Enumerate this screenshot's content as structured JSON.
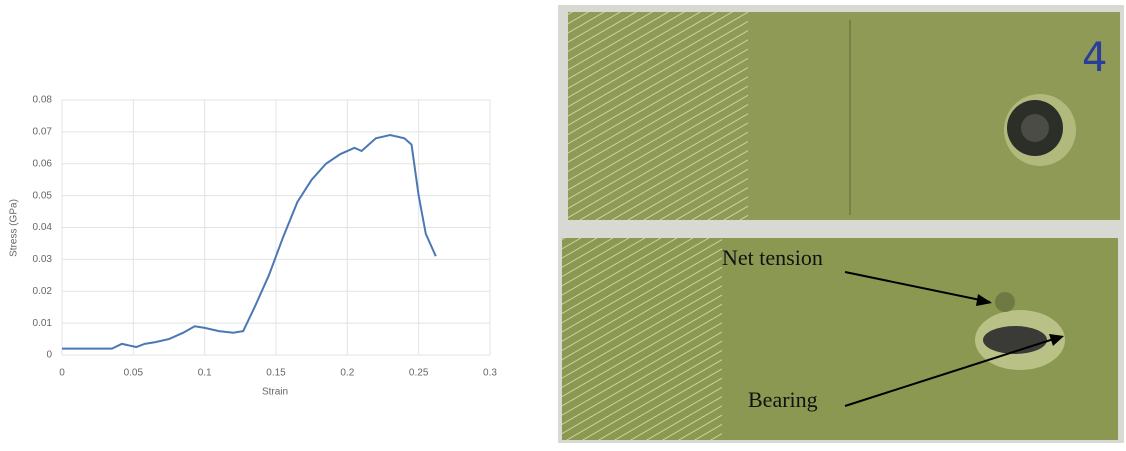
{
  "chart_data": {
    "type": "line",
    "x_label": "Strain",
    "y_label": "Stress (GPa)",
    "x": [
      0,
      0.02,
      0.035,
      0.042,
      0.047,
      0.052,
      0.058,
      0.065,
      0.075,
      0.085,
      0.093,
      0.1,
      0.11,
      0.12,
      0.127,
      0.135,
      0.145,
      0.155,
      0.165,
      0.175,
      0.185,
      0.195,
      0.205,
      0.21,
      0.22,
      0.23,
      0.24,
      0.245,
      0.25,
      0.255,
      0.262
    ],
    "values": [
      0.002,
      0.002,
      0.002,
      0.0035,
      0.003,
      0.0025,
      0.0035,
      0.004,
      0.005,
      0.007,
      0.009,
      0.0085,
      0.0075,
      0.007,
      0.0075,
      0.015,
      0.025,
      0.037,
      0.048,
      0.055,
      0.06,
      0.063,
      0.065,
      0.064,
      0.068,
      0.069,
      0.068,
      0.066,
      0.05,
      0.038,
      0.031
    ],
    "color": "#4a78b5",
    "xlim": [
      0,
      0.3
    ],
    "xticks": [
      0,
      0.05,
      0.1,
      0.15,
      0.2,
      0.25,
      0.3
    ],
    "ylim": [
      0,
      0.08
    ],
    "yticks": [
      0,
      0.01,
      0.02,
      0.03,
      0.04,
      0.05,
      0.06,
      0.07,
      0.08
    ],
    "grid": true
  },
  "photo": {
    "specimen_number": "4",
    "labels": [
      "Net tension",
      "Bearing"
    ]
  }
}
